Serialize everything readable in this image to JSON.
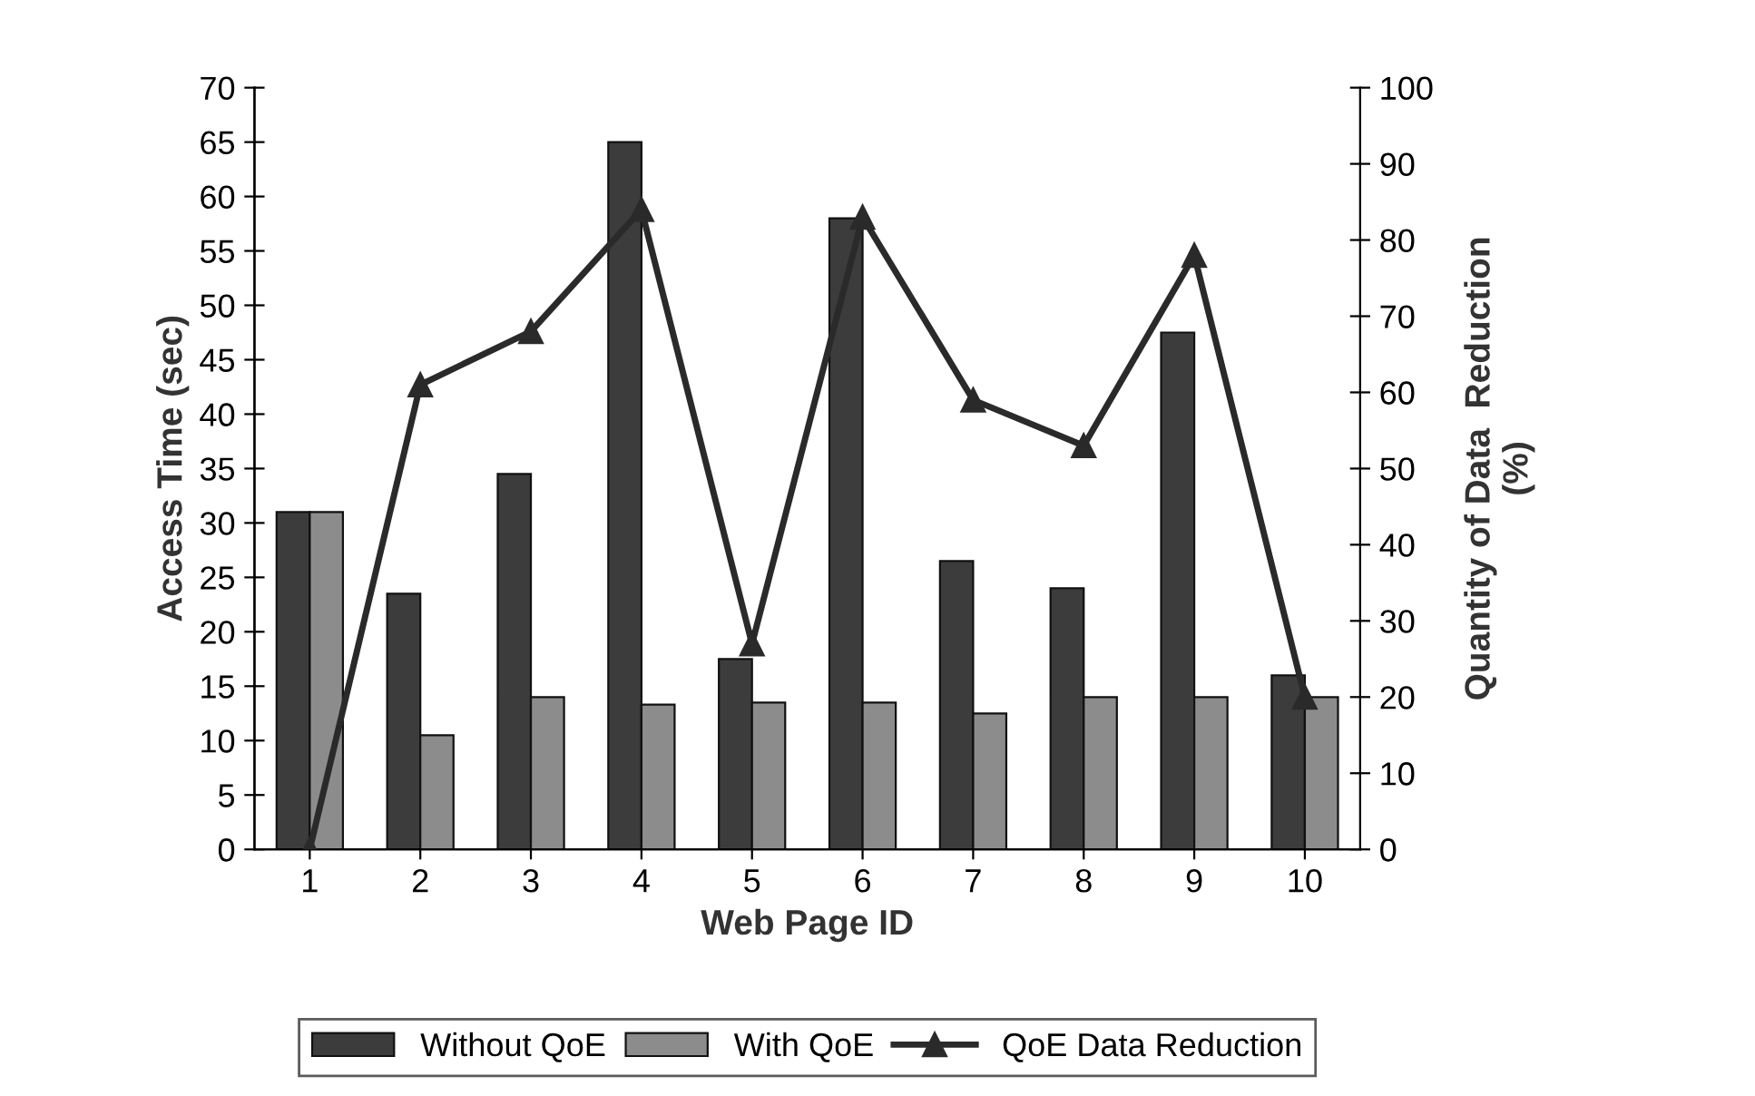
{
  "chart_data": {
    "type": "bar",
    "xlabel": "Web Page ID",
    "ylabel": "Access Time (sec)",
    "y2label": "Quantity of Data  Reduction\n(%)",
    "categories": [
      "1",
      "2",
      "3",
      "4",
      "5",
      "6",
      "7",
      "8",
      "9",
      "10"
    ],
    "series": [
      {
        "name": "Without QoE",
        "color": "#3c3c3c",
        "values": [
          31,
          23.5,
          34.5,
          65,
          17.5,
          58,
          26.5,
          24,
          47.5,
          16
        ]
      },
      {
        "name": "With QoE",
        "color": "#8c8c8c",
        "values": [
          31,
          10.5,
          14,
          13.3,
          13.5,
          13.5,
          12.5,
          14,
          14,
          14
        ]
      },
      {
        "name": "QoE Data Reduction",
        "type": "line",
        "axis": "y2",
        "color": "#2a2a2a",
        "marker": "triangle",
        "values": [
          0,
          61,
          68,
          84,
          27,
          83,
          59,
          53,
          78,
          20
        ]
      }
    ],
    "ylim": [
      0,
      70
    ],
    "yticks": [
      0,
      5,
      10,
      15,
      20,
      25,
      30,
      35,
      40,
      45,
      50,
      55,
      60,
      65,
      70
    ],
    "y2lim": [
      0,
      100
    ],
    "y2ticks": [
      0,
      10,
      20,
      30,
      40,
      50,
      60,
      70,
      80,
      90,
      100
    ],
    "legend": "bottom",
    "grid": false
  }
}
